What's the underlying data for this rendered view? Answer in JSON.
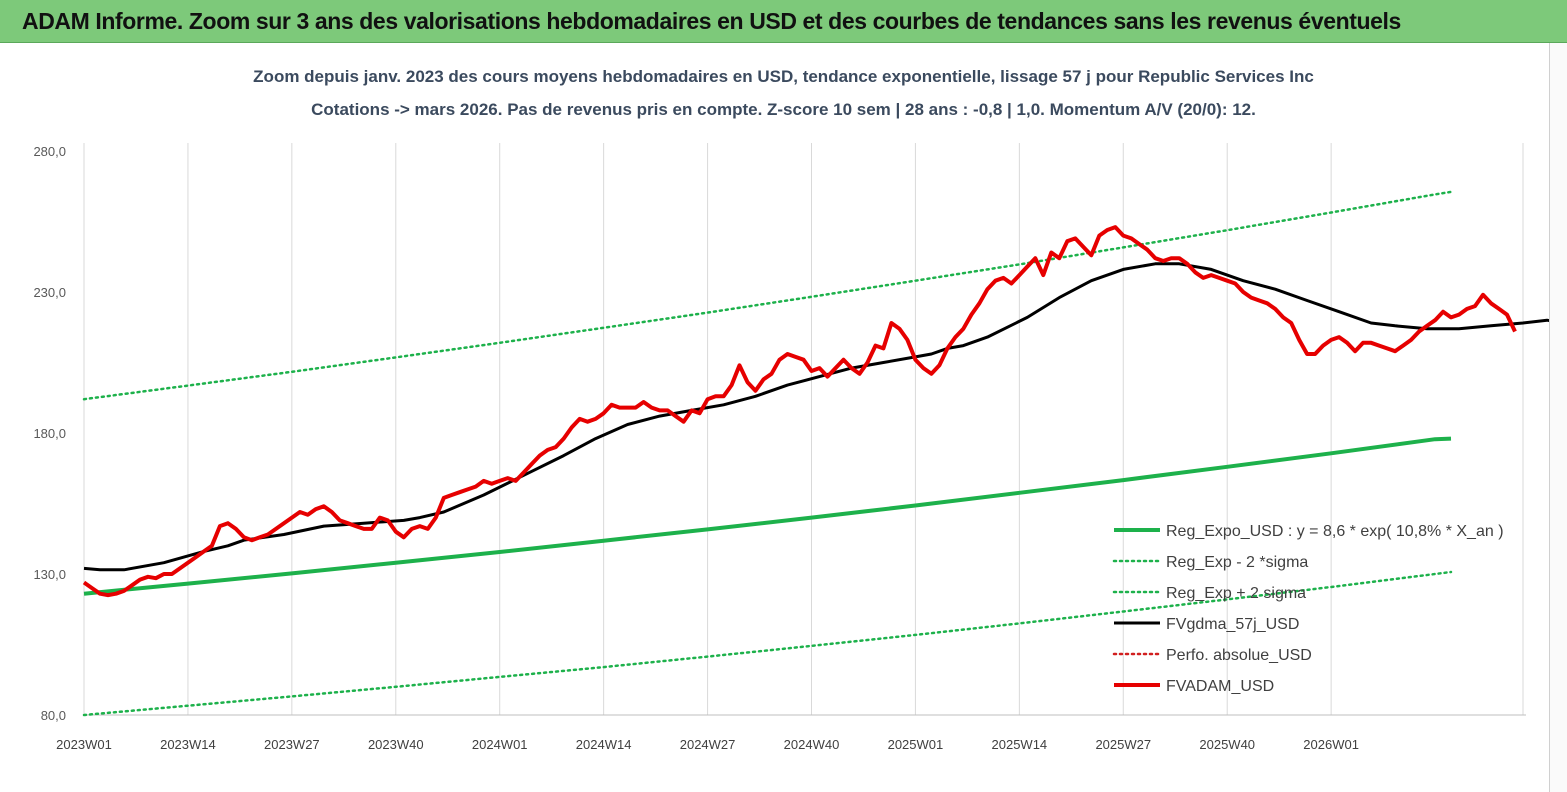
{
  "banner": {
    "title": "ADAM Informe. Zoom sur 3 ans des valorisations hebdomadaires en USD et des courbes de tendances sans les revenus éventuels"
  },
  "chart_data": {
    "type": "line",
    "title_line1": "Zoom depuis janv. 2023 des cours moyens hebdomadaires en USD, tendance exponentielle, lissage 57 j pour Republic Services Inc",
    "title_line2": "Cotations -> mars 2026. Pas de revenus pris en compte. Z-score 10 sem  |  28 ans : -0,8  |  1,0. Momentum A/V (20/0): 12.",
    "ylim": [
      80,
      280
    ],
    "y_ticks": [
      "80,0",
      "130,0",
      "180,0",
      "230,0",
      "280,0"
    ],
    "x_ticks": [
      "2023W01",
      "2023W14",
      "2023W27",
      "2023W40",
      "2024W01",
      "2024W14",
      "2024W27",
      "2024W40",
      "2025W01",
      "2025W14",
      "2025W27",
      "2025W40",
      "2026W01"
    ],
    "grid": "vertical",
    "legend_position": "bottom-right",
    "series": [
      {
        "name": "Reg_Expo_USD : y = 8,6 * exp( 10,8% *  X_an )",
        "color": "#1db14b",
        "style": "solid-thick",
        "points": [
          [
            0,
            123
          ],
          [
            13,
            126.6
          ],
          [
            26,
            130.2
          ],
          [
            39,
            134
          ],
          [
            52,
            137.8
          ],
          [
            65,
            141.8
          ],
          [
            78,
            145.8
          ],
          [
            91,
            150
          ],
          [
            104,
            154.3
          ],
          [
            117,
            158.8
          ],
          [
            130,
            163.3
          ],
          [
            143,
            168
          ],
          [
            156,
            172.8
          ],
          [
            169,
            177.8
          ],
          [
            171,
            178
          ]
        ]
      },
      {
        "name": "Reg_Exp - 2 *sigma",
        "color": "#1db14b",
        "style": "dotted",
        "points": [
          [
            0,
            80
          ],
          [
            13,
            83.3
          ],
          [
            26,
            86.6
          ],
          [
            39,
            90
          ],
          [
            52,
            93.5
          ],
          [
            65,
            97
          ],
          [
            78,
            100.7
          ],
          [
            91,
            104.5
          ],
          [
            104,
            108.4
          ],
          [
            117,
            112.5
          ],
          [
            130,
            116.7
          ],
          [
            143,
            121
          ],
          [
            156,
            125.4
          ],
          [
            169,
            130
          ],
          [
            171,
            130.7
          ]
        ]
      },
      {
        "name": "Reg_Exp + 2 sigma",
        "color": "#1db14b",
        "style": "dotted",
        "points": [
          [
            0,
            192
          ],
          [
            13,
            196.8
          ],
          [
            26,
            201.7
          ],
          [
            39,
            206.8
          ],
          [
            52,
            212
          ],
          [
            65,
            217.3
          ],
          [
            78,
            222.7
          ],
          [
            91,
            228.3
          ],
          [
            104,
            234
          ],
          [
            117,
            239.8
          ],
          [
            130,
            245.8
          ],
          [
            143,
            251.9
          ],
          [
            156,
            258.2
          ],
          [
            169,
            264.6
          ],
          [
            171,
            265.5
          ]
        ]
      },
      {
        "name": "FVgdma_57j_USD",
        "color": "#000000",
        "style": "solid",
        "points": [
          [
            0,
            132
          ],
          [
            2,
            131.5
          ],
          [
            5,
            131.5
          ],
          [
            10,
            134
          ],
          [
            15,
            138
          ],
          [
            18,
            140
          ],
          [
            20,
            142
          ],
          [
            25,
            144
          ],
          [
            30,
            147
          ],
          [
            35,
            148
          ],
          [
            40,
            149
          ],
          [
            42,
            150
          ],
          [
            45,
            152
          ],
          [
            50,
            158
          ],
          [
            55,
            165
          ],
          [
            60,
            172
          ],
          [
            64,
            178
          ],
          [
            68,
            183
          ],
          [
            72,
            186
          ],
          [
            76,
            188
          ],
          [
            80,
            190
          ],
          [
            84,
            193
          ],
          [
            88,
            197
          ],
          [
            92,
            200
          ],
          [
            96,
            203
          ],
          [
            100,
            205
          ],
          [
            104,
            207
          ],
          [
            106,
            208
          ],
          [
            108,
            210
          ],
          [
            110,
            211
          ],
          [
            113,
            214
          ],
          [
            118,
            221
          ],
          [
            122,
            228
          ],
          [
            126,
            234
          ],
          [
            128,
            236
          ],
          [
            130,
            238
          ],
          [
            134,
            240
          ],
          [
            137,
            240
          ],
          [
            141,
            238
          ],
          [
            145,
            234
          ],
          [
            149,
            231
          ],
          [
            153,
            227
          ],
          [
            157,
            223
          ],
          [
            161,
            219
          ],
          [
            164,
            218
          ],
          [
            168,
            217
          ],
          [
            172,
            217
          ],
          [
            176,
            218
          ],
          [
            180,
            219
          ],
          [
            183,
            220
          ],
          [
            185,
            219
          ],
          [
            187,
            218
          ]
        ]
      },
      {
        "name": "Perfo. absolue_USD",
        "color": "#d11f1f",
        "style": "dotted",
        "points": []
      },
      {
        "name": "FVADAM_USD",
        "color": "#e60000",
        "style": "solid-thick",
        "points": [
          [
            0,
            127
          ],
          [
            1,
            125
          ],
          [
            2,
            123
          ],
          [
            3,
            122.5
          ],
          [
            4,
            123
          ],
          [
            5,
            124
          ],
          [
            6,
            126
          ],
          [
            7,
            128
          ],
          [
            8,
            129
          ],
          [
            9,
            128.5
          ],
          [
            10,
            130
          ],
          [
            11,
            130
          ],
          [
            12,
            132
          ],
          [
            13,
            134
          ],
          [
            14,
            136
          ],
          [
            15,
            138
          ],
          [
            16,
            140
          ],
          [
            17,
            147
          ],
          [
            18,
            148
          ],
          [
            19,
            146
          ],
          [
            20,
            143
          ],
          [
            21,
            142
          ],
          [
            22,
            143
          ],
          [
            23,
            144
          ],
          [
            24,
            146
          ],
          [
            25,
            148
          ],
          [
            26,
            150
          ],
          [
            27,
            152
          ],
          [
            28,
            151
          ],
          [
            29,
            153
          ],
          [
            30,
            154
          ],
          [
            31,
            152
          ],
          [
            32,
            149
          ],
          [
            33,
            148
          ],
          [
            34,
            147
          ],
          [
            35,
            146
          ],
          [
            36,
            146
          ],
          [
            37,
            150
          ],
          [
            38,
            149
          ],
          [
            39,
            145
          ],
          [
            40,
            143
          ],
          [
            41,
            146
          ],
          [
            42,
            147
          ],
          [
            43,
            146
          ],
          [
            44,
            150
          ],
          [
            45,
            157
          ],
          [
            46,
            158
          ],
          [
            47,
            159
          ],
          [
            48,
            160
          ],
          [
            49,
            161
          ],
          [
            50,
            163
          ],
          [
            51,
            162
          ],
          [
            52,
            163
          ],
          [
            53,
            164
          ],
          [
            54,
            163
          ],
          [
            55,
            166
          ],
          [
            56,
            169
          ],
          [
            57,
            172
          ],
          [
            58,
            174
          ],
          [
            59,
            175
          ],
          [
            60,
            178
          ],
          [
            61,
            182
          ],
          [
            62,
            185
          ],
          [
            63,
            184
          ],
          [
            64,
            185
          ],
          [
            65,
            187
          ],
          [
            66,
            190
          ],
          [
            67,
            189
          ],
          [
            68,
            189
          ],
          [
            69,
            189
          ],
          [
            70,
            191
          ],
          [
            71,
            189
          ],
          [
            72,
            188
          ],
          [
            73,
            188
          ],
          [
            74,
            186
          ],
          [
            75,
            184
          ],
          [
            76,
            188
          ],
          [
            77,
            187
          ],
          [
            78,
            192
          ],
          [
            79,
            193
          ],
          [
            80,
            193
          ],
          [
            81,
            197
          ],
          [
            82,
            204
          ],
          [
            83,
            198
          ],
          [
            84,
            195
          ],
          [
            85,
            199
          ],
          [
            86,
            201
          ],
          [
            87,
            206
          ],
          [
            88,
            208
          ],
          [
            89,
            207
          ],
          [
            90,
            206
          ],
          [
            91,
            202
          ],
          [
            92,
            203
          ],
          [
            93,
            200
          ],
          [
            94,
            203
          ],
          [
            95,
            206
          ],
          [
            96,
            203
          ],
          [
            97,
            201
          ],
          [
            98,
            205
          ],
          [
            99,
            211
          ],
          [
            100,
            210
          ],
          [
            101,
            219
          ],
          [
            102,
            217
          ],
          [
            103,
            213
          ],
          [
            104,
            206
          ],
          [
            105,
            203
          ],
          [
            106,
            201
          ],
          [
            107,
            204
          ],
          [
            108,
            210
          ],
          [
            109,
            214
          ],
          [
            110,
            217
          ],
          [
            111,
            222
          ],
          [
            112,
            226
          ],
          [
            113,
            231
          ],
          [
            114,
            234
          ],
          [
            115,
            235
          ],
          [
            116,
            233
          ],
          [
            117,
            236
          ],
          [
            118,
            239
          ],
          [
            119,
            242
          ],
          [
            120,
            236
          ],
          [
            121,
            244
          ],
          [
            122,
            242
          ],
          [
            123,
            248
          ],
          [
            124,
            249
          ],
          [
            125,
            246
          ],
          [
            126,
            243
          ],
          [
            127,
            250
          ],
          [
            128,
            252
          ],
          [
            129,
            253
          ],
          [
            130,
            250
          ],
          [
            131,
            249
          ],
          [
            132,
            247
          ],
          [
            133,
            245
          ],
          [
            134,
            242
          ],
          [
            135,
            241
          ],
          [
            136,
            242
          ],
          [
            137,
            242
          ],
          [
            138,
            240
          ],
          [
            139,
            237
          ],
          [
            140,
            235
          ],
          [
            141,
            236
          ],
          [
            142,
            235
          ],
          [
            143,
            234
          ],
          [
            144,
            233
          ],
          [
            145,
            230
          ],
          [
            146,
            228
          ],
          [
            147,
            227
          ],
          [
            148,
            226
          ],
          [
            149,
            224
          ],
          [
            150,
            221
          ],
          [
            151,
            219
          ],
          [
            152,
            213
          ],
          [
            153,
            208
          ],
          [
            154,
            208
          ],
          [
            155,
            211
          ],
          [
            156,
            213
          ],
          [
            157,
            214
          ],
          [
            158,
            212
          ],
          [
            159,
            209
          ],
          [
            160,
            212
          ],
          [
            161,
            212
          ],
          [
            162,
            211
          ],
          [
            163,
            210
          ],
          [
            164,
            209
          ],
          [
            165,
            211
          ],
          [
            166,
            213
          ],
          [
            167,
            216
          ],
          [
            168,
            218
          ],
          [
            169,
            220
          ],
          [
            170,
            223
          ],
          [
            171,
            221
          ],
          [
            172,
            222
          ],
          [
            173,
            224
          ],
          [
            174,
            225
          ],
          [
            175,
            229
          ],
          [
            176,
            226
          ],
          [
            177,
            224
          ],
          [
            178,
            222
          ],
          [
            179,
            216
          ]
        ]
      }
    ]
  }
}
